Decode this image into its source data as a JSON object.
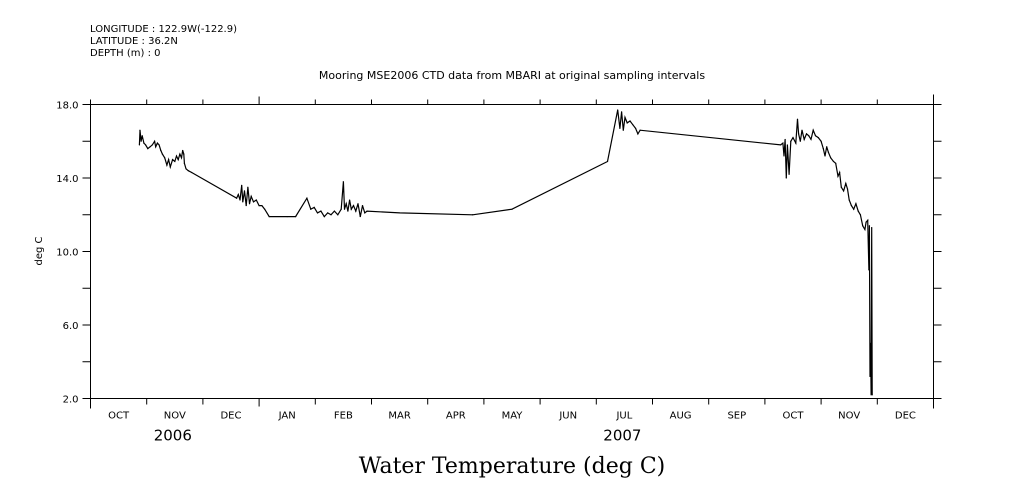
{
  "header": {
    "longitude": "LONGITUDE : 122.9W(-122.9)",
    "latitude": "LATITUDE : 36.2N",
    "depth": "DEPTH (m) : 0"
  },
  "chart_data": {
    "type": "line",
    "title": "Mooring MSE2006 CTD data from MBARI at original sampling intervals",
    "bottom_title": "Water Temperature (deg C)",
    "xlabel": "",
    "ylabel": "deg C",
    "x_units": "months since 2006-10-01",
    "xlim": [
      0,
      15
    ],
    "ylim": [
      2.0,
      18.0
    ],
    "y_ticks": [
      2,
      4,
      6,
      8,
      10,
      12,
      14,
      16,
      18
    ],
    "y_tick_labels": [
      {
        "value": 2,
        "label": "2.0"
      },
      {
        "value": 6,
        "label": "6.0"
      },
      {
        "value": 10,
        "label": "10.0"
      },
      {
        "value": 14,
        "label": "14.0"
      },
      {
        "value": 18,
        "label": "18.0"
      }
    ],
    "x_tick_labels": [
      "OCT",
      "NOV",
      "DEC",
      "JAN",
      "FEB",
      "MAR",
      "APR",
      "MAY",
      "JUN",
      "JUL",
      "AUG",
      "SEP",
      "OCT",
      "NOV",
      "DEC"
    ],
    "year_labels": [
      {
        "month_index": 1,
        "label": "2006"
      },
      {
        "month_index": 9,
        "label": "2007"
      }
    ],
    "grid": false,
    "series": [
      {
        "name": "Water Temperature",
        "color": "#000000",
        "points": [
          [
            0.87,
            15.8
          ],
          [
            0.88,
            16.6
          ],
          [
            0.9,
            16.0
          ],
          [
            0.92,
            16.3
          ],
          [
            0.95,
            15.9
          ],
          [
            0.98,
            15.8
          ],
          [
            1.02,
            15.6
          ],
          [
            1.06,
            15.7
          ],
          [
            1.1,
            15.8
          ],
          [
            1.14,
            16.0
          ],
          [
            1.16,
            15.7
          ],
          [
            1.19,
            15.9
          ],
          [
            1.22,
            15.8
          ],
          [
            1.25,
            15.5
          ],
          [
            1.28,
            15.3
          ],
          [
            1.32,
            15.1
          ],
          [
            1.36,
            14.7
          ],
          [
            1.39,
            15.0
          ],
          [
            1.42,
            14.6
          ],
          [
            1.46,
            15.0
          ],
          [
            1.5,
            14.9
          ],
          [
            1.53,
            15.2
          ],
          [
            1.56,
            15.0
          ],
          [
            1.59,
            15.3
          ],
          [
            1.62,
            15.1
          ],
          [
            1.64,
            15.5
          ],
          [
            1.66,
            15.3
          ],
          [
            1.67,
            14.8
          ],
          [
            1.7,
            14.5
          ],
          [
            1.74,
            14.4
          ],
          [
            1.8,
            14.3
          ],
          [
            2.6,
            12.9
          ],
          [
            2.63,
            13.1
          ],
          [
            2.66,
            12.8
          ],
          [
            2.69,
            13.6
          ],
          [
            2.71,
            12.7
          ],
          [
            2.74,
            13.3
          ],
          [
            2.77,
            12.5
          ],
          [
            2.8,
            13.5
          ],
          [
            2.83,
            12.6
          ],
          [
            2.86,
            13.0
          ],
          [
            2.9,
            12.7
          ],
          [
            2.95,
            12.8
          ],
          [
            3.0,
            12.5
          ],
          [
            3.05,
            12.5
          ],
          [
            3.1,
            12.3
          ],
          [
            3.18,
            11.9
          ],
          [
            3.5,
            11.9
          ],
          [
            3.65,
            11.9
          ],
          [
            3.85,
            12.9
          ],
          [
            3.92,
            12.3
          ],
          [
            3.98,
            12.4
          ],
          [
            4.04,
            12.1
          ],
          [
            4.1,
            12.2
          ],
          [
            4.16,
            11.9
          ],
          [
            4.22,
            12.1
          ],
          [
            4.28,
            12.0
          ],
          [
            4.34,
            12.2
          ],
          [
            4.4,
            12.0
          ],
          [
            4.46,
            12.3
          ],
          [
            4.5,
            13.8
          ],
          [
            4.52,
            12.3
          ],
          [
            4.55,
            12.6
          ],
          [
            4.58,
            12.2
          ],
          [
            4.61,
            12.8
          ],
          [
            4.64,
            12.3
          ],
          [
            4.68,
            12.5
          ],
          [
            4.72,
            12.2
          ],
          [
            4.76,
            12.6
          ],
          [
            4.8,
            11.9
          ],
          [
            4.84,
            12.5
          ],
          [
            4.88,
            12.1
          ],
          [
            4.92,
            12.2
          ],
          [
            5.5,
            12.1
          ],
          [
            6.8,
            12.0
          ],
          [
            7.5,
            12.3
          ],
          [
            9.2,
            14.9
          ],
          [
            9.38,
            17.7
          ],
          [
            9.42,
            16.7
          ],
          [
            9.45,
            17.6
          ],
          [
            9.48,
            16.6
          ],
          [
            9.51,
            17.3
          ],
          [
            9.55,
            17.0
          ],
          [
            9.6,
            17.1
          ],
          [
            9.65,
            16.9
          ],
          [
            9.7,
            16.7
          ],
          [
            9.74,
            16.4
          ],
          [
            9.78,
            16.6
          ],
          [
            12.28,
            15.8
          ],
          [
            12.32,
            15.9
          ],
          [
            12.34,
            15.2
          ],
          [
            12.36,
            16.1
          ],
          [
            12.38,
            14.0
          ],
          [
            12.4,
            15.8
          ],
          [
            12.43,
            14.2
          ],
          [
            12.46,
            16.0
          ],
          [
            12.5,
            16.2
          ],
          [
            12.55,
            15.9
          ],
          [
            12.58,
            17.2
          ],
          [
            12.6,
            16.4
          ],
          [
            12.63,
            16.0
          ],
          [
            12.66,
            16.6
          ],
          [
            12.7,
            16.1
          ],
          [
            12.74,
            16.4
          ],
          [
            12.78,
            16.3
          ],
          [
            12.82,
            16.1
          ],
          [
            12.86,
            16.6
          ],
          [
            12.9,
            16.3
          ],
          [
            12.95,
            16.2
          ],
          [
            13.0,
            16.0
          ],
          [
            13.04,
            15.6
          ],
          [
            13.07,
            15.2
          ],
          [
            13.1,
            15.7
          ],
          [
            13.13,
            15.4
          ],
          [
            13.17,
            15.1
          ],
          [
            13.22,
            14.9
          ],
          [
            13.26,
            14.8
          ],
          [
            13.3,
            14.1
          ],
          [
            13.33,
            14.3
          ],
          [
            13.36,
            13.5
          ],
          [
            13.4,
            13.3
          ],
          [
            13.44,
            13.7
          ],
          [
            13.47,
            13.4
          ],
          [
            13.5,
            12.8
          ],
          [
            13.54,
            12.5
          ],
          [
            13.58,
            12.3
          ],
          [
            13.62,
            12.6
          ],
          [
            13.66,
            12.2
          ],
          [
            13.7,
            12.0
          ],
          [
            13.74,
            11.4
          ],
          [
            13.78,
            11.2
          ],
          [
            13.8,
            11.6
          ],
          [
            13.83,
            11.7
          ],
          [
            13.85,
            9.0
          ],
          [
            13.86,
            11.4
          ],
          [
            13.87,
            3.2
          ],
          [
            13.88,
            5.0
          ],
          [
            13.89,
            2.2
          ],
          [
            13.9,
            11.3
          ],
          [
            13.91,
            2.2
          ]
        ]
      }
    ]
  }
}
